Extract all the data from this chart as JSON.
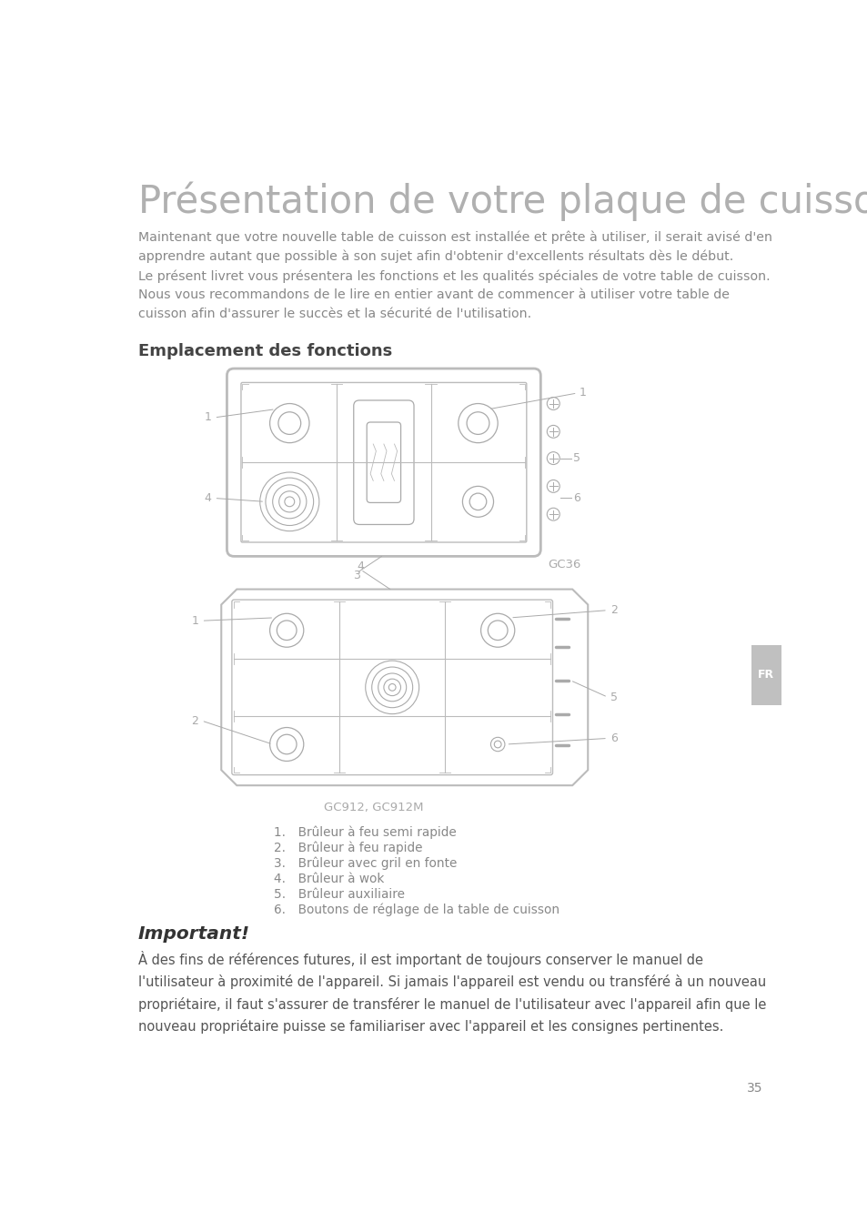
{
  "title": "Présentation de votre plaque de cuisson",
  "title_color": "#b0b0b0",
  "title_fontsize": 30,
  "body_color": "#888888",
  "body_fontsize": 10.2,
  "body_text": "Maintenant que votre nouvelle table de cuisson est installée et prête à utiliser, il serait avisé d'en\napprendre autant que possible à son sujet afin d'obtenir d'excellents résultats dès le début.\nLe présent livret vous présentera les fonctions et les qualités spéciales de votre table de cuisson.\nNous vous recommandons de le lire en entier avant de commencer à utiliser votre table de\ncuisson afin d'assurer le succès et la sécurité de l'utilisation.",
  "section_title": "Emplacement des fonctions",
  "section_title_fontsize": 13,
  "section_title_color": "#444444",
  "diagram1_label": "GC36",
  "diagram2_label": "GC912, GC912M",
  "legend_items": [
    "Brûleur à feu semi rapide",
    "Brûleur à feu rapide",
    "Brûleur avec gril en fonte",
    "Brûleur à wok",
    "Brûleur auxiliaire",
    "Boutons de réglage de la table de cuisson"
  ],
  "important_title": "Important!",
  "important_title_color": "#333333",
  "important_body": "À des fins de références futures, il est important de toujours conserver le manuel de\nl'utilisateur à proximité de l'appareil. Si jamais l'appareil est vendu ou transféré à un nouveau\npropriétaire, il faut s'assurer de transférer le manuel de l'utilisateur avec l'appareil afin que le\nnouveau propriétaire puisse se familiariser avec l'appareil et les consignes pertinentes.",
  "important_fontsize": 10.5,
  "page_number": "35",
  "fr_tab_color": "#c0c0c0",
  "diagram_line_color": "#aaaaaa",
  "label_color": "#aaaaaa",
  "bg_color": "#ffffff"
}
